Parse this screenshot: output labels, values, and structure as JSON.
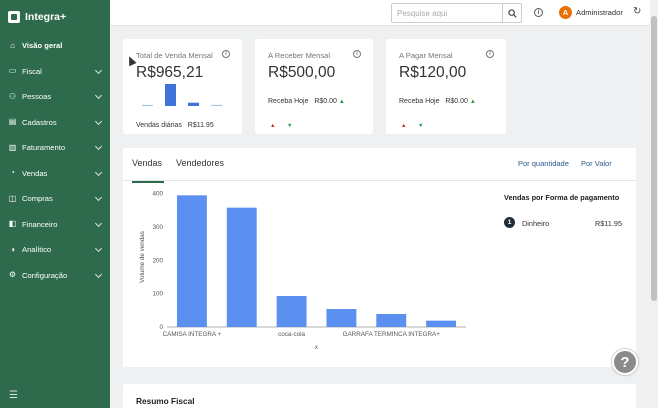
{
  "app": {
    "name": "Integra+"
  },
  "sidebar": {
    "items": [
      {
        "label": "Visão geral",
        "icon": "home-icon",
        "active": true,
        "expandable": false
      },
      {
        "label": "Fiscal",
        "icon": "folder-icon",
        "active": false,
        "expandable": true
      },
      {
        "label": "Pessoas",
        "icon": "people-icon",
        "active": false,
        "expandable": true
      },
      {
        "label": "Cadastros",
        "icon": "doc-icon",
        "active": false,
        "expandable": true
      },
      {
        "label": "Faturamento",
        "icon": "invoice-icon",
        "active": false,
        "expandable": true
      },
      {
        "label": "Vendas",
        "icon": "sales-icon",
        "active": false,
        "expandable": true
      },
      {
        "label": "Compras",
        "icon": "cart-icon",
        "active": false,
        "expandable": true
      },
      {
        "label": "Financeiro",
        "icon": "wallet-icon",
        "active": false,
        "expandable": true
      },
      {
        "label": "Analítico",
        "icon": "analytics-icon",
        "active": false,
        "expandable": true
      },
      {
        "label": "Configuração",
        "icon": "gear-icon",
        "active": false,
        "expandable": true
      }
    ]
  },
  "topbar": {
    "search_placeholder": "Pesquise aqui",
    "avatar_initial": "A",
    "user_name": "Administrador"
  },
  "cards": {
    "venda_mensal": {
      "title": "Total de Venda Mensal",
      "value": "R$965,21",
      "daily_label": "Vendas diárias",
      "daily_value": "R$11.95",
      "mini_bars": [
        0.05,
        1,
        0.15,
        0.05
      ]
    },
    "a_receber": {
      "title": "A Receber Mensal",
      "value": "R$500,00",
      "today_label": "Receba Hoje",
      "today_value": "R$0.00"
    },
    "a_pagar": {
      "title": "A Pagar Mensal",
      "value": "R$120,00",
      "today_label": "Receba Hoje",
      "today_value": "R$0.00"
    }
  },
  "main_panel": {
    "tabs": [
      "Vendas",
      "Vendedores"
    ],
    "options": [
      "Por quantidade",
      "Por Valor"
    ],
    "payment_title": "Vendas por Forma de pagamento",
    "payments": [
      {
        "rank": "1",
        "name": "Dinheiro",
        "value": "R$11.95"
      }
    ]
  },
  "bottom": {
    "title": "Resumo Fiscal"
  },
  "colors": {
    "sidebar": "#2e6b4c",
    "bar": "#5b8ff0",
    "accent_orange": "#e8710a"
  },
  "chart_data": {
    "type": "bar",
    "categories": [
      "CAMISA INTEGRA +",
      "",
      "coca-cola",
      "",
      "GARRAFA TERMINCA INTEGRA+",
      ""
    ],
    "values": [
      395,
      358,
      93,
      54,
      39,
      19
    ],
    "xlabel": "x",
    "ylabel": "Volume de vendas",
    "ylim": [
      0,
      420
    ],
    "yticks": [
      0,
      100,
      200,
      300,
      400
    ],
    "grid": false
  }
}
